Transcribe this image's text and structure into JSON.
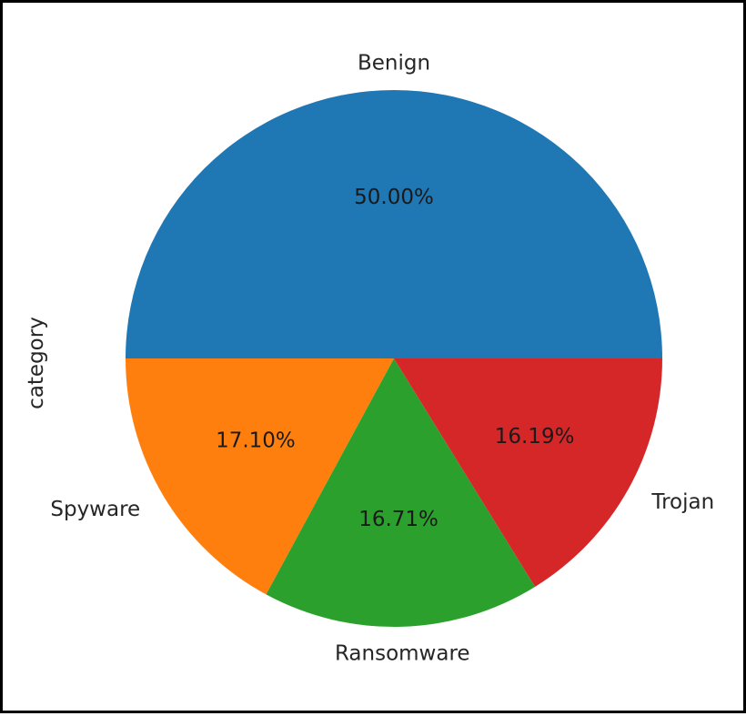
{
  "chart_data": {
    "type": "pie",
    "ylabel": "category",
    "start_angle_deg": 0,
    "direction": "counterclockwise",
    "slices": [
      {
        "label": "Benign",
        "value": 50.0,
        "pct_text": "50.00%",
        "color": "#1f77b4"
      },
      {
        "label": "Spyware",
        "value": 17.1,
        "pct_text": "17.10%",
        "color": "#ff7f0e"
      },
      {
        "label": "Ransomware",
        "value": 16.71,
        "pct_text": "16.71%",
        "color": "#2ca02c"
      },
      {
        "label": "Trojan",
        "value": 16.19,
        "pct_text": "16.19%",
        "color": "#d62728"
      }
    ]
  }
}
